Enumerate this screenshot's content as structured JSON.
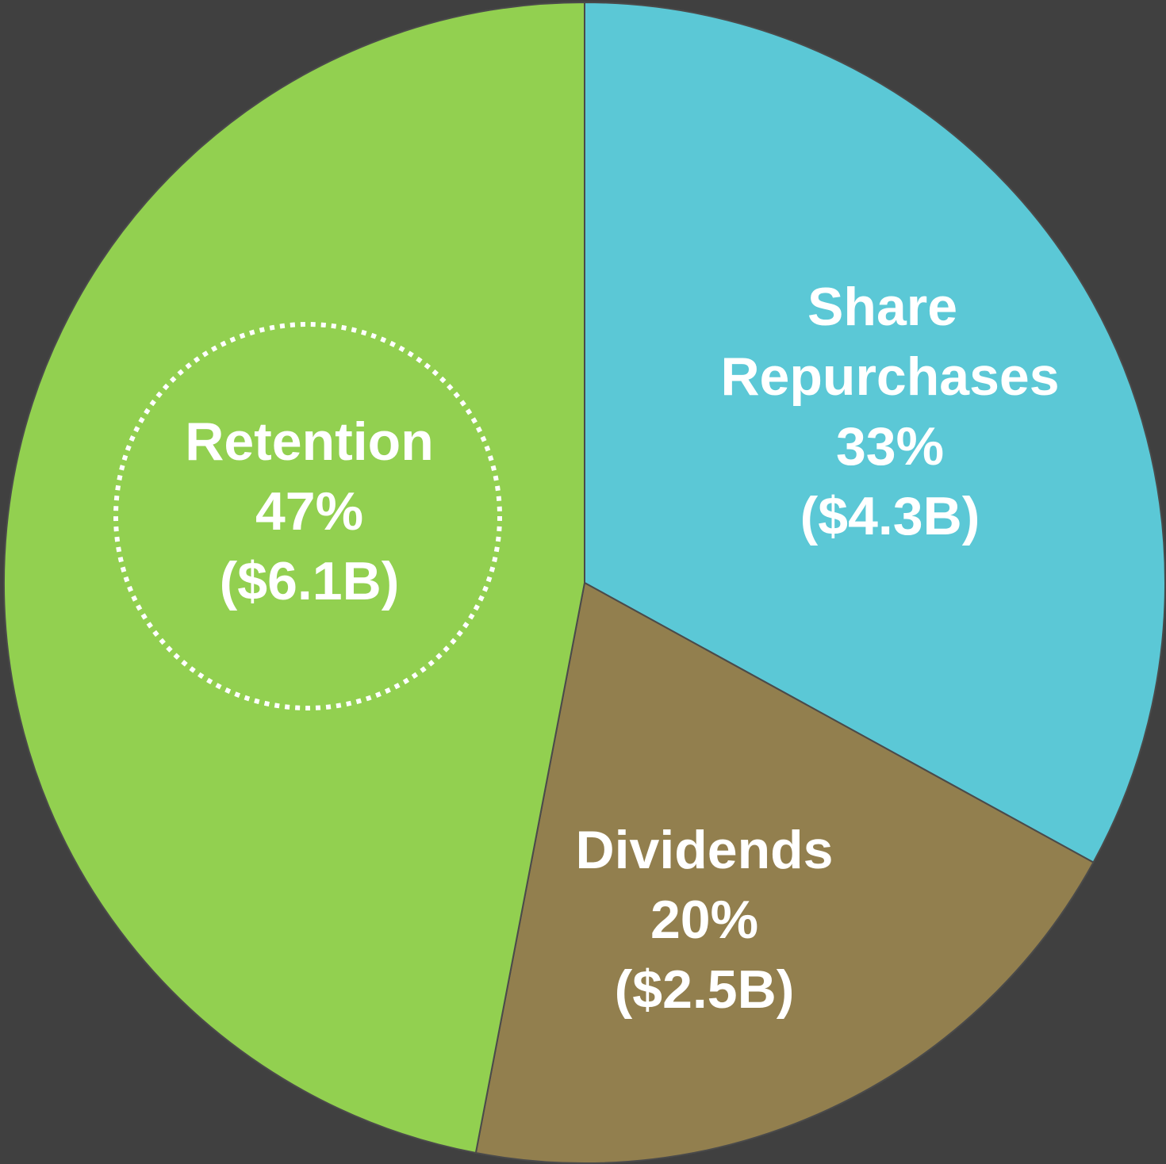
{
  "chart_data": {
    "type": "pie",
    "categories": [
      "Share Repurchases",
      "Dividends",
      "Retention"
    ],
    "values": [
      33,
      20,
      47
    ],
    "value_labels": [
      "33%",
      "20%",
      "47%"
    ],
    "amounts": [
      4.3,
      2.5,
      6.1
    ],
    "amount_labels": [
      "($4.3B)",
      "($2.5B)",
      "($6.1B)"
    ],
    "colors": [
      "#5bc8d6",
      "#927f4e",
      "#92d050"
    ]
  }
}
